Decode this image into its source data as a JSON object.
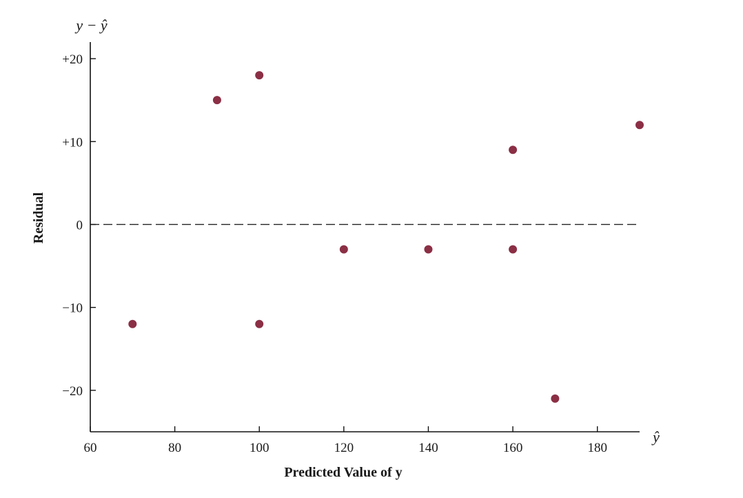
{
  "chart_data": {
    "type": "scatter",
    "title": "",
    "xlabel": "Predicted Value of y",
    "ylabel": "Residual",
    "x_axis_symbol": "ŷ",
    "y_axis_symbol": "y − ŷ",
    "xlim": [
      60,
      190
    ],
    "ylim": [
      -25,
      22
    ],
    "x_ticks": [
      60,
      80,
      100,
      120,
      140,
      160,
      180
    ],
    "x_tick_labels": [
      "60",
      "80",
      "100",
      "120",
      "140",
      "160",
      "180"
    ],
    "y_ticks": [
      20,
      10,
      0,
      -10,
      -20
    ],
    "y_tick_labels": [
      "+20",
      "+10",
      "0",
      "−10",
      "−20"
    ],
    "reference_line": {
      "y": 0,
      "style": "dashed"
    },
    "grid": false,
    "marker_color": "#8b2f45",
    "series": [
      {
        "points": [
          {
            "x": 70,
            "y": -12
          },
          {
            "x": 90,
            "y": 15
          },
          {
            "x": 100,
            "y": 18
          },
          {
            "x": 100,
            "y": -12
          },
          {
            "x": 120,
            "y": -3
          },
          {
            "x": 140,
            "y": -3
          },
          {
            "x": 160,
            "y": 9
          },
          {
            "x": 160,
            "y": -3
          },
          {
            "x": 170,
            "y": -21
          },
          {
            "x": 190,
            "y": 12
          }
        ]
      }
    ]
  }
}
